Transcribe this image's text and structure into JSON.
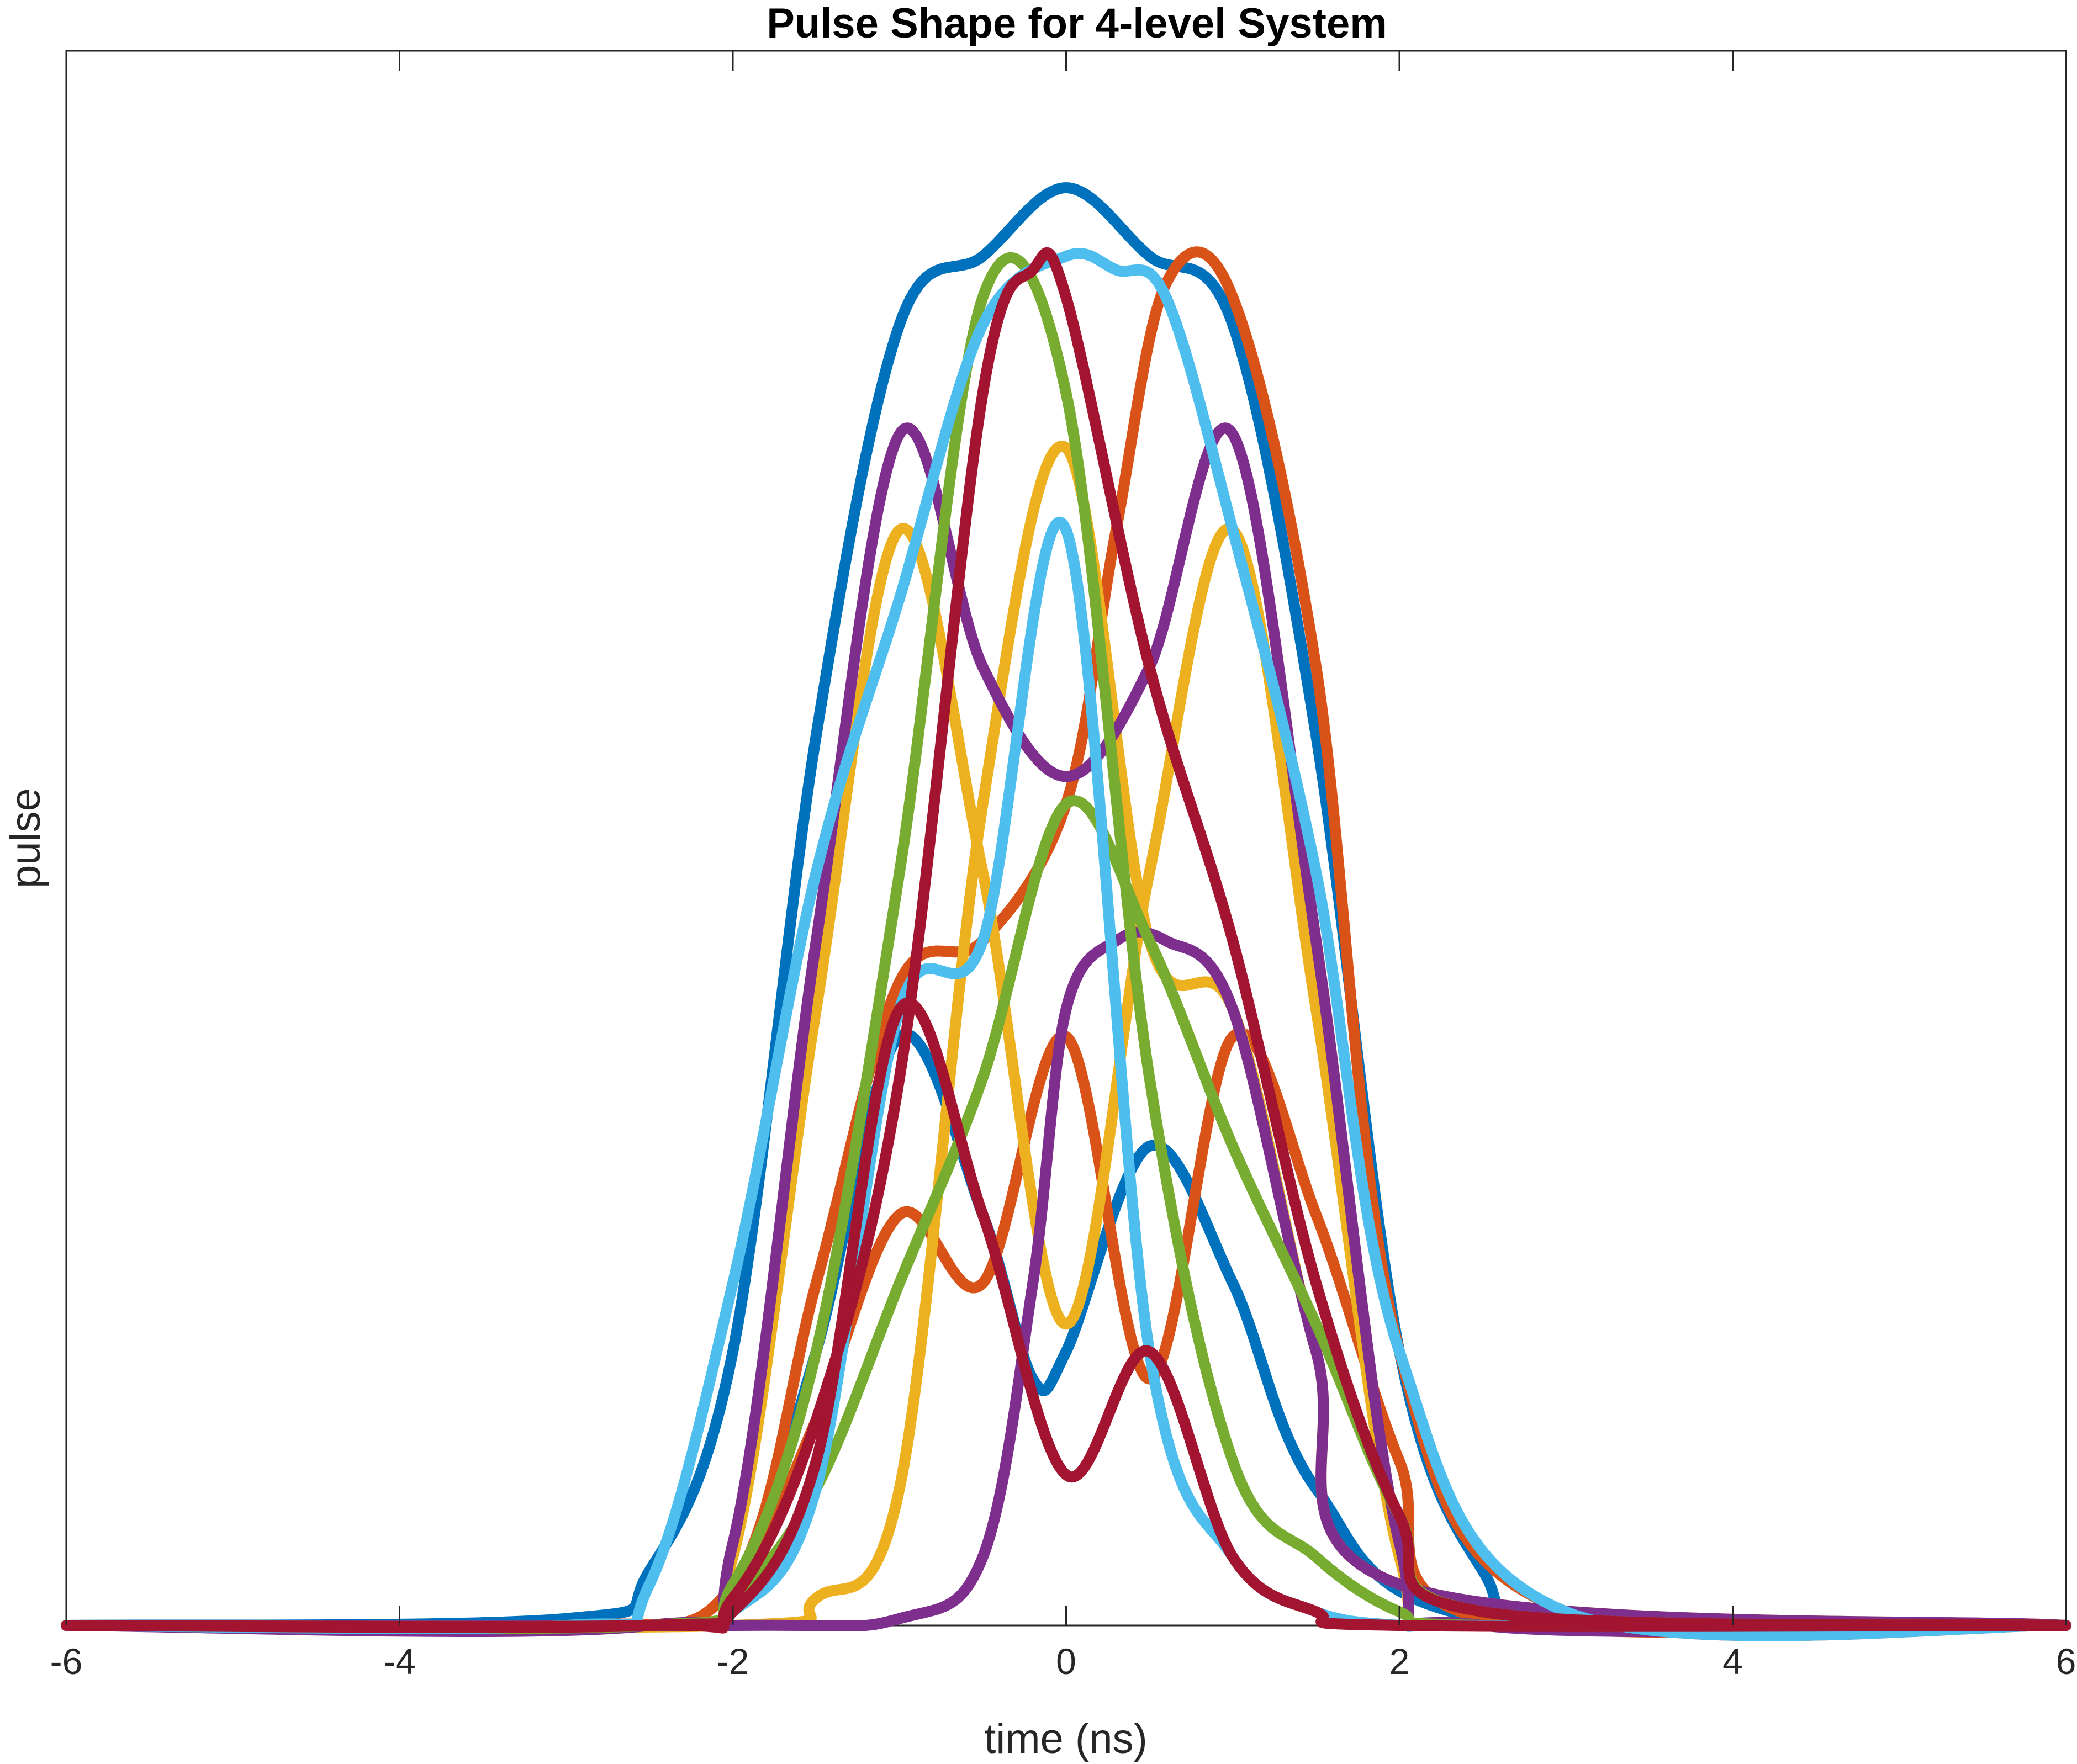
{
  "chart_data": {
    "type": "line",
    "title": "Pulse Shape for 4-level System",
    "xlabel": "time (ns)",
    "ylabel": "pulse",
    "xlim": [
      -6,
      6
    ],
    "ylim": [
      0,
      1.15
    ],
    "xticks": [
      "-6",
      "-4",
      "-2",
      "0",
      "2",
      "4",
      "6"
    ],
    "xtick_values": [
      -6,
      -4,
      -2,
      0,
      2,
      4,
      6
    ],
    "grid": false,
    "legend": "none",
    "colors": {
      "blue": "#0072BD",
      "orange": "#D95319",
      "yellow": "#EDB120",
      "purple": "#7E2F8E",
      "green": "#77AC30",
      "cyan": "#4DBEEE",
      "red": "#A2142F"
    },
    "series": [
      {
        "color": "#0072BD",
        "x": [
          -6,
          -3,
          -2.5,
          -2,
          -1.5,
          -1,
          -0.5,
          0,
          0.5,
          1,
          1.5,
          2,
          2.5,
          3,
          6
        ],
        "y": [
          0,
          0.005,
          0.04,
          0.2,
          0.65,
          0.95,
          1.0,
          1.05,
          1.0,
          0.95,
          0.65,
          0.2,
          0.04,
          0.005,
          0
        ]
      },
      {
        "color": "#0072BD",
        "x": [
          -6,
          -2.5,
          -2,
          -1.5,
          -1,
          -0.5,
          -0.2,
          0,
          0.5,
          1,
          1.5,
          2.5,
          6
        ],
        "y": [
          0,
          0,
          0.02,
          0.2,
          0.43,
          0.3,
          0.18,
          0.2,
          0.35,
          0.25,
          0.1,
          0.005,
          0
        ]
      },
      {
        "color": "#D95319",
        "x": [
          -6,
          -3,
          -2,
          -1.5,
          -1,
          -0.5,
          0,
          0.3,
          0.6,
          1,
          1.5,
          2,
          3,
          6
        ],
        "y": [
          0,
          0,
          0.03,
          0.25,
          0.47,
          0.5,
          0.6,
          0.8,
          0.98,
          0.97,
          0.7,
          0.2,
          0.01,
          0
        ]
      },
      {
        "color": "#D95319",
        "x": [
          -6,
          -2.5,
          -2,
          -1.5,
          -1,
          -0.5,
          0,
          0.5,
          1,
          1.5,
          2,
          2.5,
          6
        ],
        "y": [
          0,
          0,
          0.02,
          0.15,
          0.3,
          0.25,
          0.43,
          0.18,
          0.43,
          0.3,
          0.12,
          0.005,
          0
        ]
      },
      {
        "color": "#EDB120",
        "x": [
          -6,
          -2.5,
          -2,
          -1.5,
          -1,
          -0.5,
          0,
          0.5,
          1,
          1.5,
          2,
          2.5,
          6
        ],
        "y": [
          0,
          0,
          0.05,
          0.45,
          0.8,
          0.55,
          0.22,
          0.55,
          0.8,
          0.45,
          0.05,
          0,
          0
        ]
      },
      {
        "color": "#EDB120",
        "x": [
          -6,
          -2,
          -1.5,
          -1,
          -0.5,
          0,
          0.5,
          1,
          1.5,
          2,
          6
        ],
        "y": [
          0,
          0,
          0.02,
          0.1,
          0.6,
          0.86,
          0.5,
          0.45,
          0.2,
          0.03,
          0
        ]
      },
      {
        "color": "#7E2F8E",
        "x": [
          -6,
          -2.5,
          -2,
          -1.5,
          -1,
          -0.5,
          0,
          0.5,
          1,
          1.5,
          2,
          2.5,
          6
        ],
        "y": [
          0,
          0,
          0.06,
          0.5,
          0.87,
          0.7,
          0.62,
          0.7,
          0.87,
          0.5,
          0.06,
          0,
          0
        ]
      },
      {
        "color": "#7E2F8E",
        "x": [
          -6,
          -2,
          -1,
          -0.5,
          -0.2,
          0,
          0.3,
          0.6,
          1,
          1.5,
          2,
          6
        ],
        "y": [
          0,
          0,
          0.005,
          0.05,
          0.25,
          0.45,
          0.5,
          0.5,
          0.45,
          0.2,
          0.03,
          0
        ]
      },
      {
        "color": "#77AC30",
        "x": [
          -6,
          -2.5,
          -2,
          -1.5,
          -1,
          -0.5,
          0,
          0.5,
          1,
          1.5,
          2,
          2.5,
          6
        ],
        "y": [
          0,
          0,
          0.03,
          0.2,
          0.55,
          0.97,
          0.9,
          0.4,
          0.12,
          0.05,
          0.01,
          0,
          0
        ]
      },
      {
        "color": "#77AC30",
        "x": [
          -6,
          -2.5,
          -2,
          -1.5,
          -1,
          -0.5,
          0,
          0.5,
          1,
          1.5,
          2,
          2.5,
          6
        ],
        "y": [
          0,
          0,
          0.02,
          0.1,
          0.25,
          0.4,
          0.6,
          0.5,
          0.35,
          0.22,
          0.08,
          0.01,
          0
        ]
      },
      {
        "color": "#4DBEEE",
        "x": [
          -6,
          -3,
          -2.5,
          -2,
          -1.5,
          -1,
          -0.5,
          0,
          0.3,
          0.6,
          1,
          1.5,
          2,
          3,
          6
        ],
        "y": [
          0,
          0,
          0.03,
          0.25,
          0.55,
          0.75,
          0.95,
          1.0,
          0.99,
          0.97,
          0.8,
          0.55,
          0.2,
          0.01,
          0
        ]
      },
      {
        "color": "#4DBEEE",
        "x": [
          -6,
          -2.5,
          -2,
          -1.5,
          -1,
          -0.5,
          0,
          0.5,
          1,
          1.5,
          2,
          2.5,
          6
        ],
        "y": [
          0,
          0,
          0.01,
          0.1,
          0.45,
          0.5,
          0.8,
          0.2,
          0.05,
          0.01,
          0,
          0,
          0
        ]
      },
      {
        "color": "#A2142F",
        "x": [
          -6,
          -2.5,
          -2,
          -1.5,
          -1,
          -0.5,
          -0.2,
          0,
          0.5,
          1,
          1.5,
          2,
          2.5,
          6
        ],
        "y": [
          0,
          0,
          0.02,
          0.15,
          0.4,
          0.9,
          0.99,
          0.97,
          0.7,
          0.5,
          0.25,
          0.08,
          0.01,
          0
        ]
      },
      {
        "color": "#A2142F",
        "x": [
          -6,
          -2.5,
          -2,
          -1.5,
          -1,
          -0.5,
          0,
          0.5,
          1,
          1.5,
          2,
          6
        ],
        "y": [
          0,
          0,
          0.01,
          0.12,
          0.45,
          0.3,
          0.11,
          0.2,
          0.05,
          0.01,
          0,
          0
        ]
      }
    ]
  }
}
